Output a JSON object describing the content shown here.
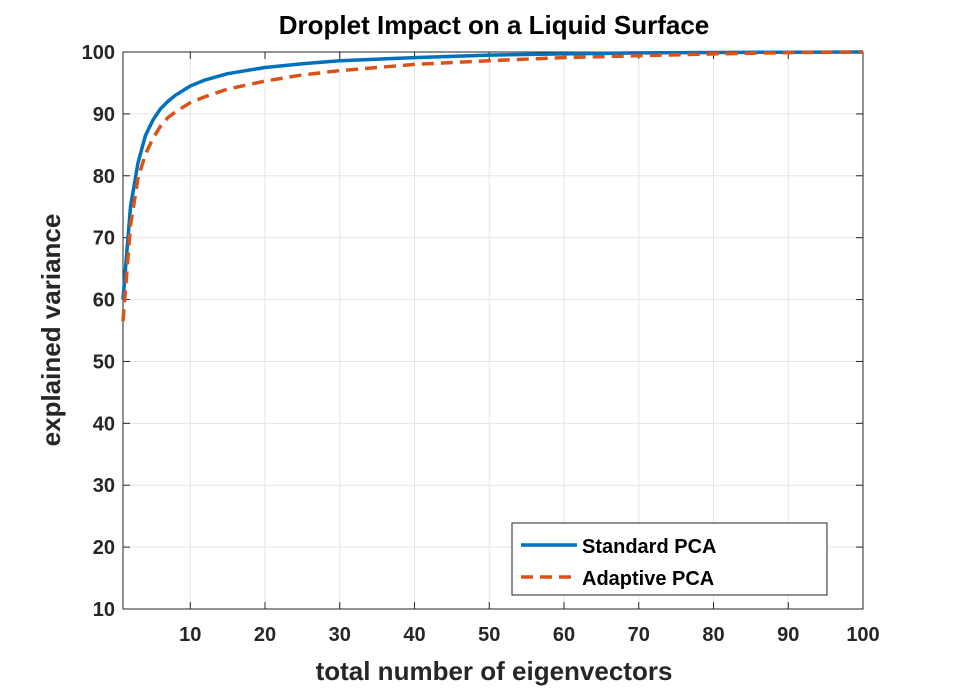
{
  "chart_data": {
    "type": "line",
    "title": "Droplet Impact on a Liquid Surface",
    "xlabel": "total number of eigenvectors",
    "ylabel": "explained variance",
    "xlim": [
      1,
      100
    ],
    "ylim": [
      10,
      100
    ],
    "xticks": [
      10,
      20,
      30,
      40,
      50,
      60,
      70,
      80,
      90,
      100
    ],
    "yticks": [
      10,
      20,
      30,
      40,
      50,
      60,
      70,
      80,
      90,
      100
    ],
    "grid": true,
    "legend_position": "bottom-right",
    "x": [
      1,
      2,
      3,
      4,
      5,
      6,
      7,
      8,
      10,
      12,
      15,
      20,
      25,
      30,
      40,
      50,
      60,
      70,
      80,
      90,
      100
    ],
    "series": [
      {
        "name": "Standard PCA",
        "color": "#0072BD",
        "style": "solid",
        "values": [
          60,
          75,
          82,
          86.5,
          89,
          90.8,
          92,
          93,
          94.5,
          95.5,
          96.5,
          97.5,
          98.1,
          98.6,
          99.1,
          99.5,
          99.7,
          99.85,
          99.92,
          99.97,
          100
        ]
      },
      {
        "name": "Adaptive PCA",
        "color": "#D95319",
        "style": "dashed",
        "values": [
          56.5,
          72,
          79.5,
          83.5,
          86,
          88,
          89.4,
          90.3,
          91.8,
          92.8,
          94,
          95.3,
          96.3,
          97,
          98,
          98.6,
          99.1,
          99.4,
          99.7,
          99.9,
          100
        ]
      }
    ]
  }
}
